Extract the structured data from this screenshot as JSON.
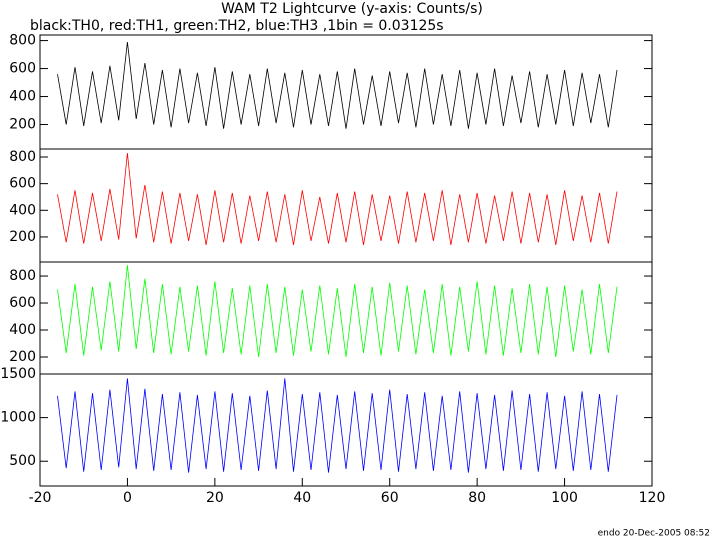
{
  "title": "WAM T2 Lightcurve (y-axis: Counts/s)",
  "subtitle": "black:TH0, red:TH1, green:TH2, blue:TH3 ,1bin = 0.03125s",
  "footer": "endo 20-Dec-2005 08:52",
  "chart_data": [
    {
      "type": "line",
      "color": "#000000",
      "xlim": [
        -20,
        120
      ],
      "ylim": [
        25,
        840
      ],
      "yticks": [
        200,
        400,
        600,
        800
      ],
      "x": [
        -16,
        -14,
        -12,
        -10,
        -8,
        -6,
        -4,
        -2,
        0,
        2,
        4,
        6,
        8,
        10,
        12,
        14,
        16,
        18,
        20,
        22,
        24,
        26,
        28,
        30,
        32,
        34,
        36,
        38,
        40,
        42,
        44,
        46,
        48,
        50,
        52,
        54,
        56,
        58,
        60,
        62,
        64,
        66,
        68,
        70,
        72,
        74,
        76,
        78,
        80,
        82,
        84,
        86,
        88,
        90,
        92,
        94,
        96,
        98,
        100,
        102,
        104,
        106,
        108,
        110,
        112
      ],
      "values": [
        560,
        200,
        610,
        190,
        580,
        210,
        620,
        230,
        790,
        240,
        640,
        200,
        590,
        180,
        600,
        210,
        570,
        190,
        610,
        170,
        580,
        200,
        560,
        190,
        600,
        210,
        570,
        180,
        590,
        200,
        560,
        190,
        580,
        170,
        600,
        200,
        550,
        190,
        580,
        210,
        570,
        180,
        600,
        200,
        560,
        190,
        590,
        170,
        570,
        200,
        600,
        190,
        550,
        210,
        580,
        180,
        560,
        200,
        590,
        190,
        570,
        210,
        560,
        180,
        590
      ]
    },
    {
      "type": "line",
      "color": "#ff0000",
      "xlim": [
        -20,
        120
      ],
      "ylim": [
        12,
        860
      ],
      "yticks": [
        200,
        400,
        600,
        800
      ],
      "x": [
        -16,
        -14,
        -12,
        -10,
        -8,
        -6,
        -4,
        -2,
        0,
        2,
        4,
        6,
        8,
        10,
        12,
        14,
        16,
        18,
        20,
        22,
        24,
        26,
        28,
        30,
        32,
        34,
        36,
        38,
        40,
        42,
        44,
        46,
        48,
        50,
        52,
        54,
        56,
        58,
        60,
        62,
        64,
        66,
        68,
        70,
        72,
        74,
        76,
        78,
        80,
        82,
        84,
        86,
        88,
        90,
        92,
        94,
        96,
        98,
        100,
        102,
        104,
        106,
        108,
        110,
        112
      ],
      "values": [
        520,
        160,
        550,
        150,
        530,
        170,
        560,
        180,
        830,
        190,
        590,
        160,
        540,
        150,
        530,
        170,
        520,
        140,
        550,
        160,
        530,
        150,
        510,
        170,
        540,
        160,
        520,
        140,
        550,
        170,
        500,
        150,
        530,
        160,
        540,
        140,
        520,
        170,
        510,
        150,
        540,
        160,
        530,
        170,
        550,
        140,
        520,
        160,
        530,
        150,
        510,
        170,
        540,
        150,
        530,
        160,
        520,
        140,
        550,
        170,
        510,
        160,
        530,
        150,
        540
      ]
    },
    {
      "type": "line",
      "color": "#00ff00",
      "xlim": [
        -20,
        120
      ],
      "ylim": [
        74,
        904
      ],
      "yticks": [
        200,
        400,
        600,
        800
      ],
      "x": [
        -16,
        -14,
        -12,
        -10,
        -8,
        -6,
        -4,
        -2,
        0,
        2,
        4,
        6,
        8,
        10,
        12,
        14,
        16,
        18,
        20,
        22,
        24,
        26,
        28,
        30,
        32,
        34,
        36,
        38,
        40,
        42,
        44,
        46,
        48,
        50,
        52,
        54,
        56,
        58,
        60,
        62,
        64,
        66,
        68,
        70,
        72,
        74,
        76,
        78,
        80,
        82,
        84,
        86,
        88,
        90,
        92,
        94,
        96,
        98,
        100,
        102,
        104,
        106,
        108,
        110,
        112
      ],
      "values": [
        700,
        230,
        740,
        210,
        720,
        250,
        760,
        240,
        880,
        260,
        780,
        230,
        740,
        220,
        720,
        240,
        730,
        210,
        760,
        230,
        710,
        220,
        730,
        200,
        740,
        230,
        720,
        210,
        700,
        240,
        730,
        220,
        710,
        200,
        740,
        230,
        720,
        210,
        750,
        240,
        730,
        220,
        700,
        230,
        740,
        210,
        720,
        240,
        760,
        220,
        730,
        210,
        710,
        230,
        740,
        220,
        720,
        200,
        730,
        240,
        700,
        220,
        740,
        230,
        720
      ]
    },
    {
      "type": "line",
      "color": "#0000ff",
      "xlim": [
        -20,
        120
      ],
      "ylim": [
        216,
        1500
      ],
      "yticks": [
        500,
        1000,
        1500
      ],
      "xticks": [
        -20,
        0,
        20,
        40,
        60,
        80,
        100,
        120
      ],
      "x": [
        -16,
        -14,
        -12,
        -10,
        -8,
        -6,
        -4,
        -2,
        0,
        2,
        4,
        6,
        8,
        10,
        12,
        14,
        16,
        18,
        20,
        22,
        24,
        26,
        28,
        30,
        32,
        34,
        36,
        38,
        40,
        42,
        44,
        46,
        48,
        50,
        52,
        54,
        56,
        58,
        60,
        62,
        64,
        66,
        68,
        70,
        72,
        74,
        76,
        78,
        80,
        82,
        84,
        86,
        88,
        90,
        92,
        94,
        96,
        98,
        100,
        102,
        104,
        106,
        108,
        110,
        112
      ],
      "values": [
        1250,
        420,
        1300,
        380,
        1280,
        400,
        1320,
        430,
        1450,
        410,
        1330,
        390,
        1270,
        400,
        1290,
        370,
        1260,
        410,
        1300,
        380,
        1280,
        400,
        1250,
        390,
        1310,
        410,
        1450,
        380,
        1270,
        400,
        1290,
        370,
        1260,
        410,
        1300,
        390,
        1280,
        400,
        1320,
        380,
        1270,
        410,
        1290,
        390,
        1250,
        400,
        1300,
        370,
        1280,
        410,
        1260,
        390,
        1310,
        400,
        1270,
        380,
        1290,
        410,
        1250,
        390,
        1300,
        400,
        1270,
        380,
        1260
      ]
    }
  ]
}
